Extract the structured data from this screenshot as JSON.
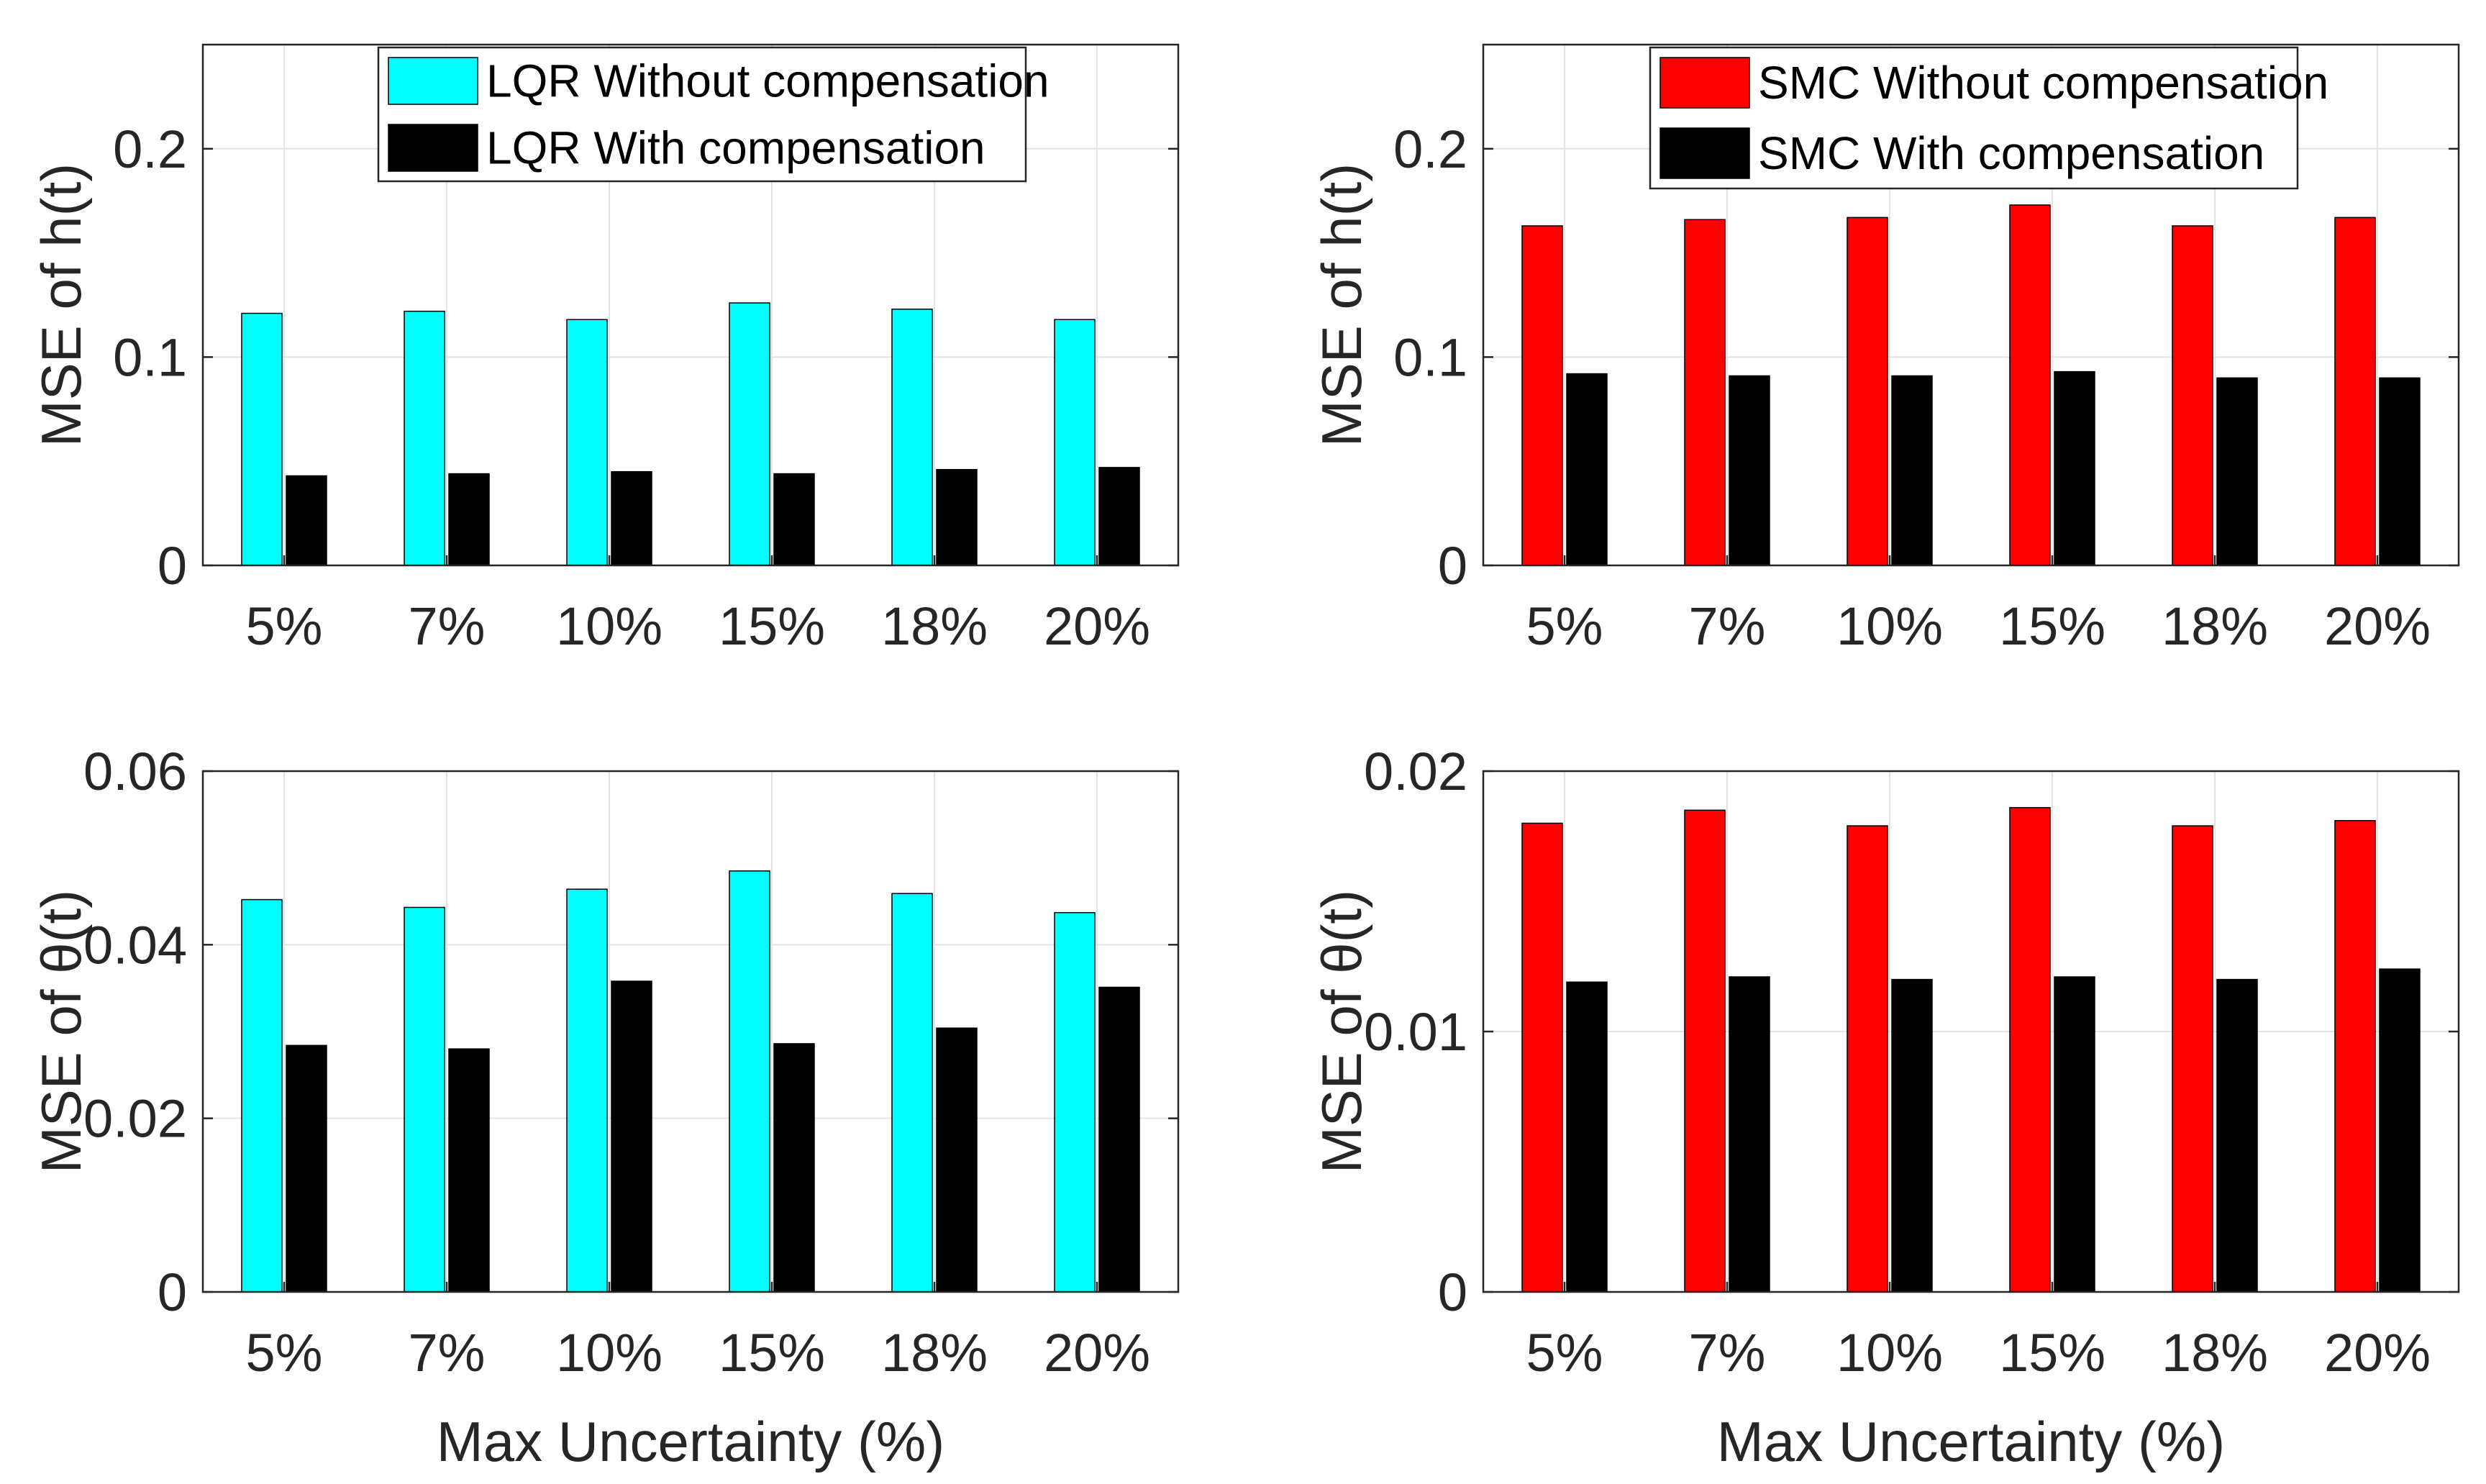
{
  "colors": {
    "lqr_without": "#00ffff",
    "smc_without": "#ff0000",
    "with": "#000000"
  },
  "chart_data": [
    {
      "type": "bar",
      "panel": "top-left",
      "categories": [
        "5%",
        "7%",
        "10%",
        "15%",
        "18%",
        "20%"
      ],
      "series": [
        {
          "name": "LQR Without compensation",
          "color_key": "lqr_without",
          "values": [
            0.121,
            0.122,
            0.118,
            0.126,
            0.123,
            0.118
          ]
        },
        {
          "name": "LQR With compensation",
          "color_key": "with",
          "values": [
            0.043,
            0.044,
            0.045,
            0.044,
            0.046,
            0.047
          ]
        }
      ],
      "ylabel": "MSE of h(t)",
      "xlabel": "",
      "ylim": [
        0,
        0.25
      ],
      "yticks": [
        0,
        0.1,
        0.2
      ],
      "ytick_labels": [
        "0",
        "0.1",
        "0.2"
      ],
      "grid": true,
      "legend": "top-center"
    },
    {
      "type": "bar",
      "panel": "top-right",
      "categories": [
        "5%",
        "7%",
        "10%",
        "15%",
        "18%",
        "20%"
      ],
      "series": [
        {
          "name": "SMC Without compensation",
          "color_key": "smc_without",
          "values": [
            0.163,
            0.166,
            0.167,
            0.173,
            0.163,
            0.167
          ]
        },
        {
          "name": "SMC With compensation",
          "color_key": "with",
          "values": [
            0.092,
            0.091,
            0.091,
            0.093,
            0.09,
            0.09
          ]
        }
      ],
      "ylabel": "MSE of h(t)",
      "xlabel": "",
      "ylim": [
        0,
        0.25
      ],
      "yticks": [
        0,
        0.1,
        0.2
      ],
      "ytick_labels": [
        "0",
        "0.1",
        "0.2"
      ],
      "grid": true,
      "legend": "top-center"
    },
    {
      "type": "bar",
      "panel": "bottom-left",
      "categories": [
        "5%",
        "7%",
        "10%",
        "15%",
        "18%",
        "20%"
      ],
      "series": [
        {
          "name": "LQR Without compensation",
          "color_key": "lqr_without",
          "values": [
            0.0452,
            0.0443,
            0.0464,
            0.0485,
            0.0459,
            0.0437
          ]
        },
        {
          "name": "LQR With compensation",
          "color_key": "with",
          "values": [
            0.0284,
            0.028,
            0.0358,
            0.0286,
            0.0304,
            0.0351
          ]
        }
      ],
      "ylabel": "MSE of θ(t)",
      "xlabel": "Max Uncertainty (%)",
      "ylim": [
        0,
        0.06
      ],
      "yticks": [
        0,
        0.02,
        0.04,
        0.06
      ],
      "ytick_labels": [
        "0",
        "0.02",
        "0.04",
        "0.06"
      ],
      "grid": true,
      "legend": "none"
    },
    {
      "type": "bar",
      "panel": "bottom-right",
      "categories": [
        "5%",
        "7%",
        "10%",
        "15%",
        "18%",
        "20%"
      ],
      "series": [
        {
          "name": "SMC Without compensation",
          "color_key": "smc_without",
          "values": [
            0.018,
            0.0185,
            0.0179,
            0.0186,
            0.0179,
            0.0181
          ]
        },
        {
          "name": "SMC With compensation",
          "color_key": "with",
          "values": [
            0.0119,
            0.0121,
            0.012,
            0.0121,
            0.012,
            0.0124
          ]
        }
      ],
      "ylabel": "MSE of θ(t)",
      "xlabel": "Max Uncertainty (%)",
      "ylim": [
        0,
        0.02
      ],
      "yticks": [
        0,
        0.01,
        0.02
      ],
      "ytick_labels": [
        "0",
        "0.01",
        "0.02"
      ],
      "grid": true,
      "legend": "none"
    }
  ]
}
